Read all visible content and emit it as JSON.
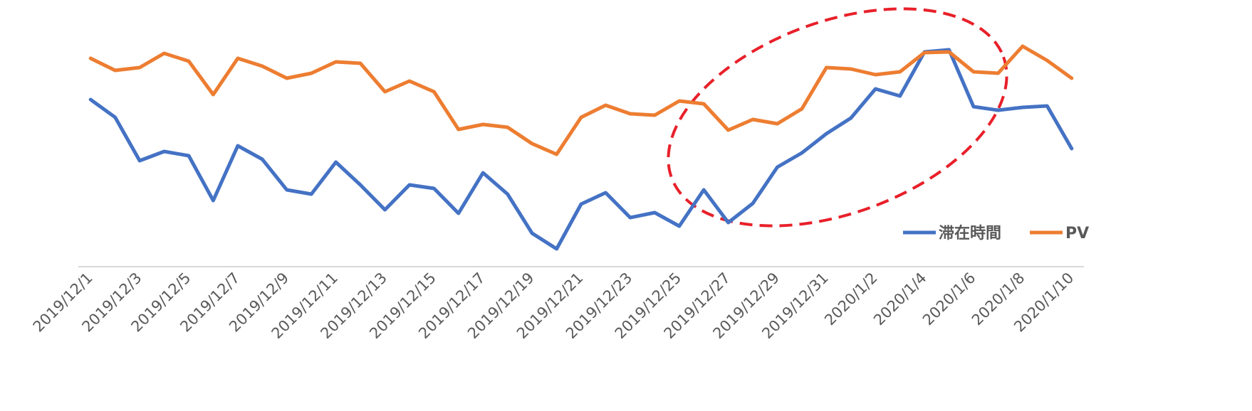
{
  "chart_data": {
    "type": "line",
    "categories": [
      "2019/12/1",
      null,
      "2019/12/3",
      null,
      "2019/12/5",
      null,
      "2019/12/7",
      null,
      "2019/12/9",
      null,
      "2019/12/11",
      null,
      "2019/12/13",
      null,
      "2019/12/15",
      null,
      "2019/12/17",
      null,
      "2019/12/19",
      null,
      "2019/12/21",
      null,
      "2019/12/23",
      null,
      "2019/12/25",
      null,
      "2019/12/27",
      null,
      "2019/12/29",
      null,
      "2019/12/31",
      null,
      "2020/1/2",
      null,
      "2020/1/4",
      null,
      "2020/1/6",
      null,
      "2020/1/8",
      null,
      "2020/1/10"
    ],
    "series": [
      {
        "name": "滞在時間",
        "color": "#4472c4",
        "values": [
          235,
          210,
          149,
          162,
          156,
          93,
          170,
          151,
          108,
          102,
          147,
          115,
          80,
          115,
          110,
          75,
          132,
          102,
          47,
          25,
          88,
          104,
          69,
          76,
          57,
          108,
          62,
          89,
          140,
          160,
          187,
          209,
          250,
          240,
          302,
          305,
          225,
          220,
          224,
          226,
          166
        ]
      },
      {
        "name": "PV",
        "color": "#ed7d31",
        "values": [
          293,
          276,
          280,
          300,
          289,
          242,
          293,
          282,
          265,
          272,
          288,
          286,
          246,
          261,
          246,
          193,
          200,
          196,
          173,
          158,
          210,
          227,
          215,
          213,
          233,
          229,
          192,
          207,
          201,
          222,
          280,
          278,
          270,
          274,
          301,
          302,
          274,
          272,
          310,
          290,
          265
        ]
      }
    ],
    "ylim": [
      0,
      375
    ],
    "legend": "bottom-right"
  }
}
